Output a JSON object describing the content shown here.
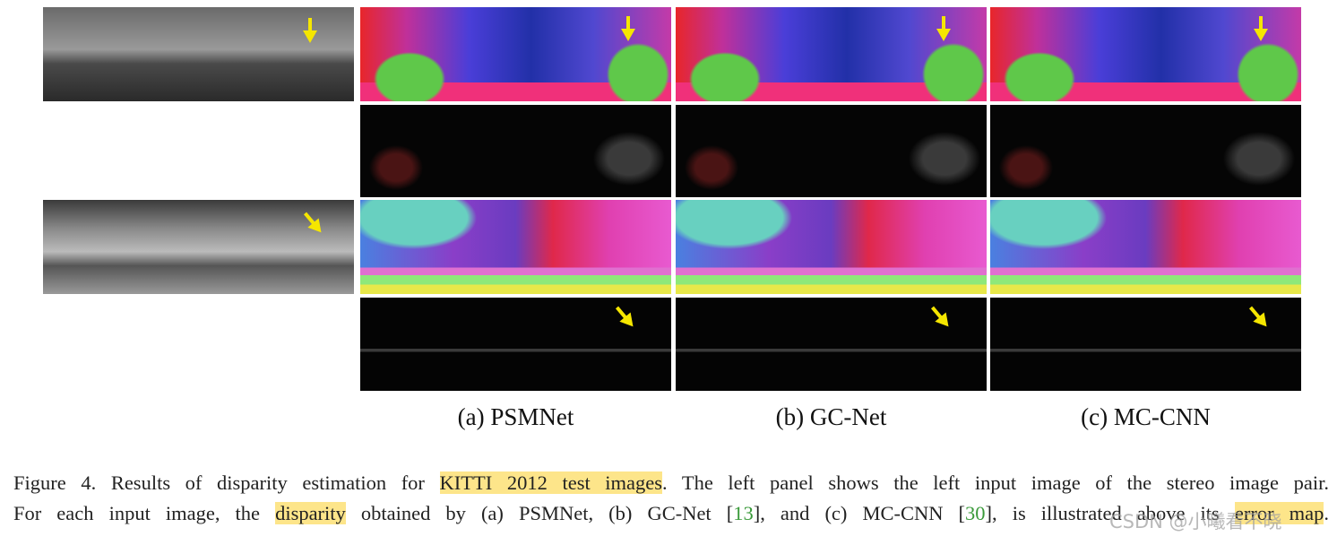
{
  "figure": {
    "labels": [
      "(a) PSMNet",
      "(b) GC-Net",
      "(c) MC-CNN"
    ],
    "caption": {
      "segments": [
        "Figure 4. Results of disparity estimation for ",
        "KITTI 2012 test images",
        ". The left panel shows the left input image of the stereo image pair.",
        "For each input image, the ",
        "disparity",
        " obtained by (a) PSMNet, (b) GC-Net [",
        "13",
        "], and (c) MC-CNN [",
        "30",
        "], is illustrated above its ",
        "error map",
        "."
      ]
    },
    "watermark": "CSDN @小曦看不晓"
  }
}
